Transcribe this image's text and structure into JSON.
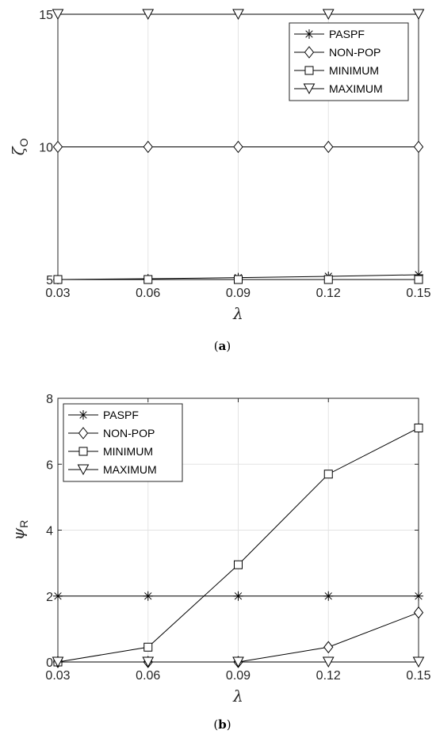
{
  "chart_data": [
    {
      "type": "line",
      "caption": "a",
      "xlabel": "λ",
      "ylabel_main": "ζ",
      "ylabel_sub": "O",
      "x": [
        0.03,
        0.06,
        0.09,
        0.12,
        0.15
      ],
      "x_tick_labels": [
        "0.03",
        "0.06",
        "0.09",
        "0.12",
        "0.15"
      ],
      "xlim": [
        0.03,
        0.15
      ],
      "ylim": [
        5,
        15
      ],
      "y_ticks": [
        5,
        10,
        15
      ],
      "y_tick_labels": [
        "5",
        "10",
        "15"
      ],
      "grid": true,
      "legend_position": "top-right",
      "series": [
        {
          "name": "PASPF",
          "marker": "asterisk",
          "values": [
            5.0,
            5.03,
            5.07,
            5.12,
            5.18
          ]
        },
        {
          "name": "NON-POP",
          "marker": "diamond",
          "values": [
            10,
            10,
            10,
            10,
            10
          ]
        },
        {
          "name": "MINIMUM",
          "marker": "square",
          "values": [
            5,
            5,
            5,
            5,
            5
          ]
        },
        {
          "name": "MAXIMUM",
          "marker": "triangle-down",
          "values": [
            15,
            15,
            15,
            15,
            15
          ]
        }
      ]
    },
    {
      "type": "line",
      "caption": "b",
      "xlabel": "λ",
      "ylabel_main": "ψ",
      "ylabel_sub": "R",
      "x": [
        0.03,
        0.06,
        0.09,
        0.12,
        0.15
      ],
      "x_tick_labels": [
        "0.03",
        "0.06",
        "0.09",
        "0.12",
        "0.15"
      ],
      "xlim": [
        0.03,
        0.15
      ],
      "ylim": [
        0,
        8
      ],
      "y_ticks": [
        0,
        2,
        4,
        6,
        8
      ],
      "y_tick_labels": [
        "0",
        "2",
        "4",
        "6",
        "8"
      ],
      "grid": true,
      "legend_position": "top-left",
      "series": [
        {
          "name": "PASPF",
          "marker": "asterisk",
          "values": [
            2,
            2,
            2,
            2,
            2
          ]
        },
        {
          "name": "NON-POP",
          "marker": "diamond",
          "values": [
            0,
            0,
            0,
            0.45,
            1.5
          ]
        },
        {
          "name": "MINIMUM",
          "marker": "square",
          "values": [
            0,
            0.45,
            2.95,
            5.7,
            7.1
          ]
        },
        {
          "name": "MAXIMUM",
          "marker": "triangle-down",
          "values": [
            0,
            0,
            0,
            0,
            0
          ]
        }
      ]
    }
  ]
}
